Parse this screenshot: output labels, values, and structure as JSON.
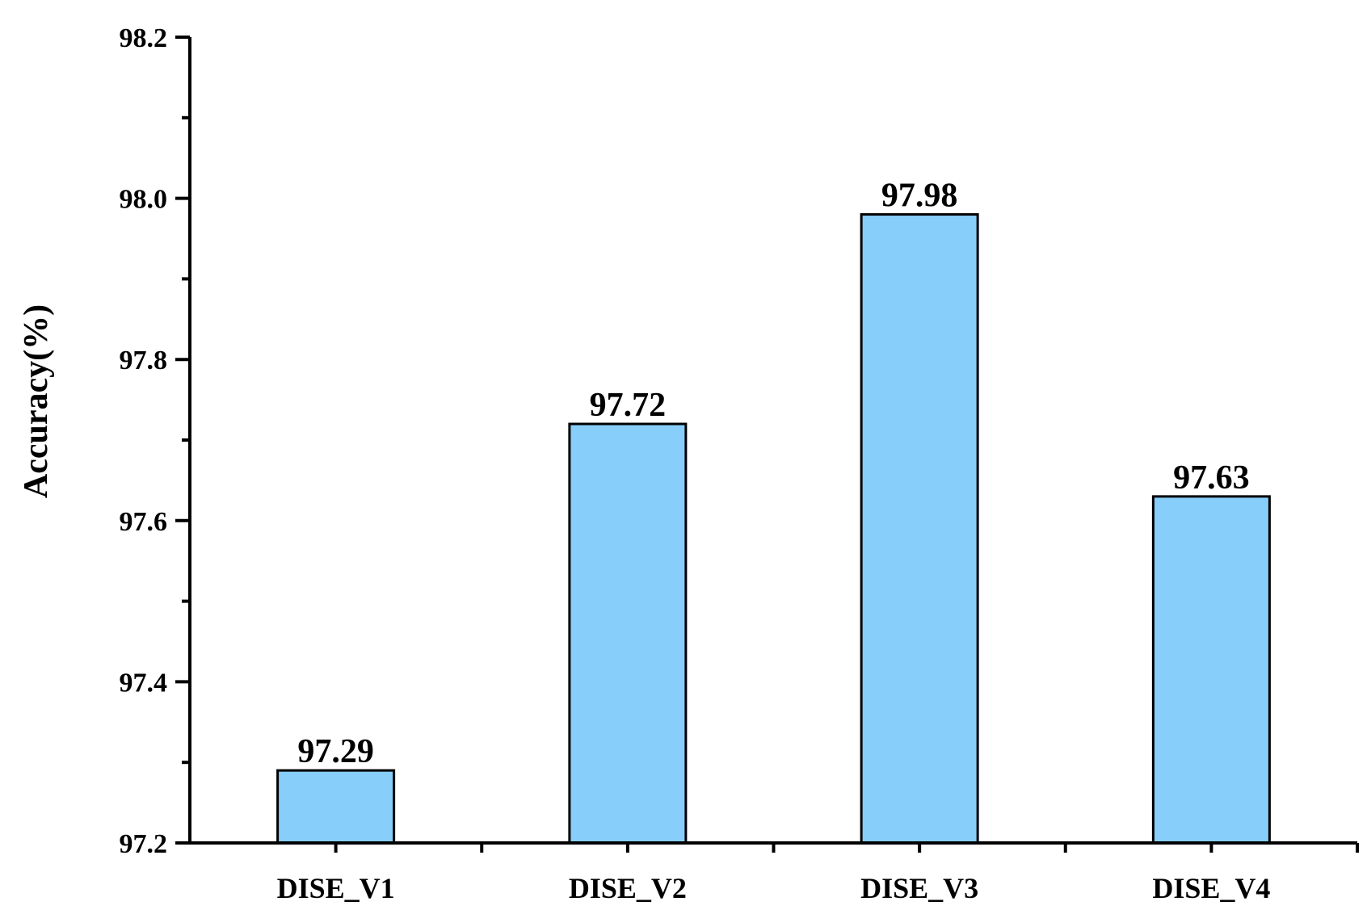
{
  "chart_data": {
    "type": "bar",
    "categories": [
      "DISE_V1",
      "DISE_V2",
      "DISE_V3",
      "DISE_V4"
    ],
    "values": [
      97.29,
      97.72,
      97.98,
      97.63
    ],
    "data_labels": [
      "97.29",
      "97.72",
      "97.98",
      "97.63"
    ],
    "title": "",
    "xlabel": "",
    "ylabel": "Accuracy(%)",
    "ylim": [
      97.2,
      98.2
    ],
    "yticks": [
      97.2,
      97.4,
      97.6,
      97.8,
      98.0,
      98.2
    ],
    "ytick_labels": [
      "97.2",
      "97.4",
      "97.6",
      "97.8",
      "98.0",
      "98.2"
    ],
    "minor_ytick_step": 0.1,
    "grid": false,
    "legend": "none",
    "colors": {
      "bar_fill": "#87CEFA",
      "bar_stroke": "#000000",
      "axis": "#000000"
    }
  }
}
